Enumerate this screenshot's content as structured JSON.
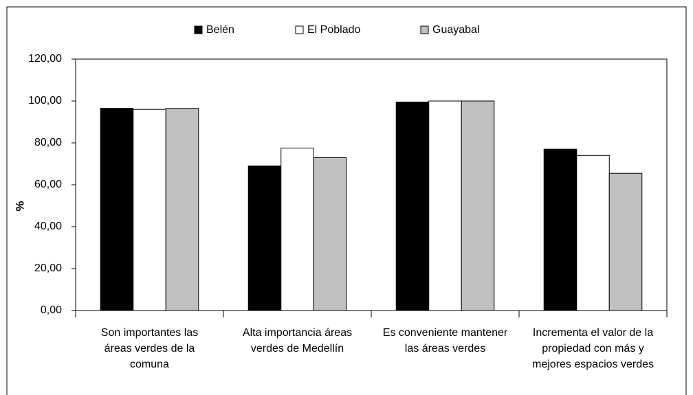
{
  "chart_data": {
    "type": "bar",
    "categories": [
      "Son importantes las áreas verdes de la comuna",
      "Alta importancia áreas verdes de Medellín",
      "Es conveniente mantener las áreas verdes",
      "Incrementa el valor de la propiedad con más y mejores espacios verdes"
    ],
    "series": [
      {
        "name": "Belén",
        "color": "#000000",
        "values": [
          96.5,
          69,
          99.5,
          77
        ]
      },
      {
        "name": "El Poblado",
        "color": "#ffffff",
        "values": [
          96,
          77.5,
          100,
          74
        ]
      },
      {
        "name": "Guayabal",
        "color": "#c0c0c0",
        "values": [
          96.5,
          73,
          100,
          65.5
        ]
      }
    ],
    "ylabel": "%",
    "ylim": [
      0,
      120
    ],
    "yticks": [
      {
        "value": 0,
        "label": "0,00"
      },
      {
        "value": 20,
        "label": "20,00"
      },
      {
        "value": 40,
        "label": "40,00"
      },
      {
        "value": 60,
        "label": "60,00"
      },
      {
        "value": 80,
        "label": "80,00"
      },
      {
        "value": 100,
        "label": "100,00"
      },
      {
        "value": 120,
        "label": "120,00"
      }
    ],
    "grid": false,
    "legend": "top"
  }
}
